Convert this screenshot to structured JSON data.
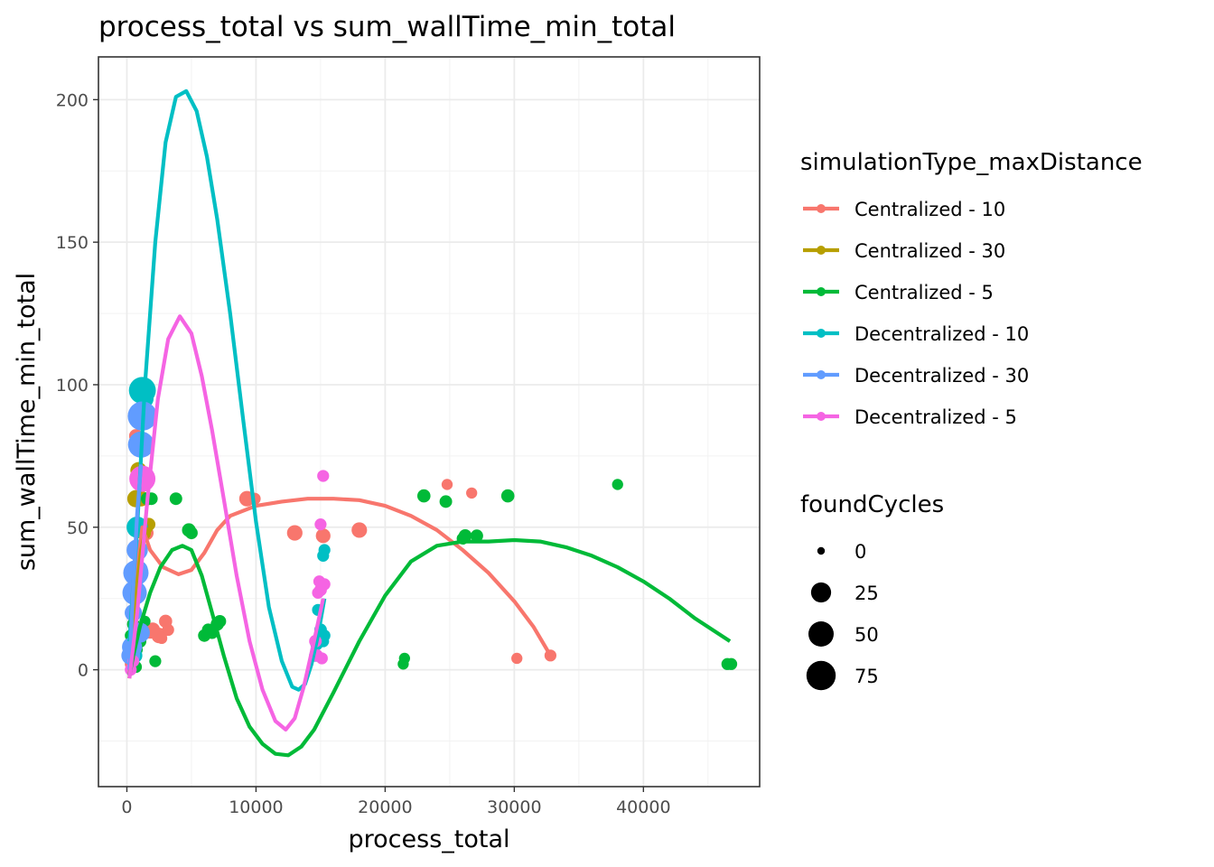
{
  "chart_data": {
    "type": "scatter",
    "title": "process_total  vs  sum_wallTime_min_total",
    "xlabel": "process_total",
    "ylabel": "sum_wallTime_min_total",
    "xlim": [
      -2200,
      49000
    ],
    "ylim": [
      -41,
      215
    ],
    "x_ticks": [
      0,
      10000,
      20000,
      30000,
      40000
    ],
    "x_tick_labels": [
      "0",
      "10000",
      "20000",
      "30000",
      "40000"
    ],
    "y_ticks": [
      0,
      50,
      100,
      150,
      200
    ],
    "y_tick_labels": [
      "0",
      "50",
      "100",
      "150",
      "200"
    ],
    "grid": true,
    "legend": {
      "position": "right",
      "color_title": "simulationType_maxDistance",
      "size_title": "foundCycles",
      "size_values": [
        0,
        25,
        50,
        75
      ],
      "size_labels": [
        "0",
        "25",
        "50",
        "75"
      ]
    },
    "series": [
      {
        "name": "Centralized - 10",
        "color": "#F8766D",
        "points": [
          [
            300,
            2,
            3
          ],
          [
            500,
            5,
            5
          ],
          [
            700,
            82,
            6
          ],
          [
            900,
            60,
            10
          ],
          [
            1000,
            60,
            4
          ],
          [
            1200,
            60,
            5
          ],
          [
            1500,
            48,
            8
          ],
          [
            1800,
            13,
            3
          ],
          [
            2000,
            14,
            8
          ],
          [
            2500,
            12,
            10
          ],
          [
            3000,
            17,
            5
          ],
          [
            3200,
            14,
            3
          ],
          [
            2700,
            11,
            2
          ],
          [
            9300,
            60,
            10
          ],
          [
            9900,
            60,
            3
          ],
          [
            13000,
            48,
            10
          ],
          [
            15200,
            47,
            8
          ],
          [
            18000,
            49,
            10
          ],
          [
            24800,
            65,
            2
          ],
          [
            26700,
            62,
            2
          ],
          [
            30200,
            4,
            2
          ],
          [
            32800,
            5,
            3
          ]
        ],
        "smooth": [
          [
            200,
            0
          ],
          [
            800,
            35
          ],
          [
            1200,
            50
          ],
          [
            1800,
            42
          ],
          [
            2800,
            36
          ],
          [
            4000,
            33.5
          ],
          [
            5000,
            35
          ],
          [
            6000,
            41
          ],
          [
            7000,
            49
          ],
          [
            8000,
            54
          ],
          [
            10000,
            57.5
          ],
          [
            12000,
            59
          ],
          [
            14000,
            60
          ],
          [
            16000,
            60
          ],
          [
            18000,
            59.5
          ],
          [
            20000,
            57.5
          ],
          [
            22000,
            54
          ],
          [
            24000,
            49
          ],
          [
            26000,
            42
          ],
          [
            28000,
            34
          ],
          [
            30000,
            24
          ],
          [
            31500,
            15
          ],
          [
            32800,
            5
          ]
        ]
      },
      {
        "name": "Centralized - 30",
        "color": "#B79F00",
        "points": [
          [
            700,
            60,
            15
          ],
          [
            900,
            70,
            12
          ],
          [
            1100,
            60,
            10
          ],
          [
            1300,
            48,
            8
          ],
          [
            1500,
            50,
            6
          ],
          [
            1700,
            51,
            5
          ],
          [
            600,
            35,
            4
          ],
          [
            400,
            20,
            4
          ]
        ],
        "smooth": [
          [
            200,
            -3
          ],
          [
            500,
            15
          ],
          [
            800,
            30
          ],
          [
            1100,
            42
          ],
          [
            1500,
            50
          ]
        ]
      },
      {
        "name": "Centralized - 5",
        "color": "#00BA38",
        "points": [
          [
            300,
            12,
            3
          ],
          [
            500,
            16,
            4
          ],
          [
            700,
            1,
            3
          ],
          [
            800,
            7,
            2
          ],
          [
            1000,
            10,
            5
          ],
          [
            1200,
            13,
            3
          ],
          [
            1400,
            17,
            2
          ],
          [
            1600,
            60,
            5
          ],
          [
            1900,
            60,
            4
          ],
          [
            2200,
            3,
            3
          ],
          [
            3800,
            60,
            4
          ],
          [
            4800,
            49,
            6
          ],
          [
            5000,
            48,
            4
          ],
          [
            6000,
            12,
            4
          ],
          [
            6300,
            14,
            4
          ],
          [
            6600,
            13,
            4
          ],
          [
            7000,
            16,
            5
          ],
          [
            7200,
            17,
            4
          ],
          [
            21400,
            2,
            2
          ],
          [
            21500,
            4,
            2
          ],
          [
            23000,
            61,
            5
          ],
          [
            24700,
            59,
            4
          ],
          [
            26200,
            47,
            5
          ],
          [
            26000,
            46,
            3
          ],
          [
            27100,
            47,
            4
          ],
          [
            29500,
            61,
            5
          ],
          [
            38000,
            65,
            2
          ],
          [
            46500,
            2,
            3
          ],
          [
            46800,
            2,
            3
          ]
        ],
        "smooth": [
          [
            200,
            -2
          ],
          [
            500,
            5
          ],
          [
            1000,
            15
          ],
          [
            1800,
            27
          ],
          [
            2600,
            36
          ],
          [
            3500,
            42
          ],
          [
            4300,
            43.5
          ],
          [
            5000,
            42
          ],
          [
            5800,
            33
          ],
          [
            6600,
            20
          ],
          [
            7500,
            5
          ],
          [
            8500,
            -10
          ],
          [
            9500,
            -20
          ],
          [
            10500,
            -26
          ],
          [
            11500,
            -29.5
          ],
          [
            12500,
            -30
          ],
          [
            13500,
            -27
          ],
          [
            14500,
            -21
          ],
          [
            16000,
            -8
          ],
          [
            18000,
            10
          ],
          [
            20000,
            26
          ],
          [
            22000,
            38
          ],
          [
            24000,
            43.5
          ],
          [
            26000,
            45
          ],
          [
            28000,
            45
          ],
          [
            30000,
            45.5
          ],
          [
            32000,
            45
          ],
          [
            34000,
            43
          ],
          [
            36000,
            40
          ],
          [
            38000,
            36
          ],
          [
            40000,
            31
          ],
          [
            42000,
            25
          ],
          [
            44000,
            18
          ],
          [
            46700,
            10
          ]
        ]
      },
      {
        "name": "Decentralized - 10",
        "color": "#00BFC4",
        "points": [
          [
            600,
            5,
            10
          ],
          [
            800,
            50,
            30
          ],
          [
            1200,
            98,
            60
          ],
          [
            1400,
            95,
            15
          ],
          [
            14600,
            5,
            4
          ],
          [
            14700,
            9,
            4
          ],
          [
            14800,
            21,
            3
          ],
          [
            15000,
            14,
            4
          ],
          [
            15200,
            40,
            3
          ],
          [
            15300,
            42,
            3
          ],
          [
            15200,
            10,
            3
          ],
          [
            15300,
            12,
            3
          ]
        ],
        "smooth": [
          [
            200,
            10
          ],
          [
            800,
            50
          ],
          [
            1400,
            100
          ],
          [
            2200,
            150
          ],
          [
            3000,
            185
          ],
          [
            3800,
            201
          ],
          [
            4600,
            203
          ],
          [
            5400,
            196
          ],
          [
            6200,
            180
          ],
          [
            7000,
            158
          ],
          [
            8000,
            125
          ],
          [
            9000,
            88
          ],
          [
            10000,
            52
          ],
          [
            11000,
            22
          ],
          [
            12000,
            3
          ],
          [
            12800,
            -6
          ],
          [
            13300,
            -7
          ],
          [
            13800,
            -5
          ],
          [
            14300,
            2
          ],
          [
            14800,
            12
          ],
          [
            15300,
            25
          ]
        ]
      },
      {
        "name": "Decentralized - 30",
        "color": "#619CFF",
        "points": [
          [
            300,
            5,
            20
          ],
          [
            400,
            8,
            25
          ],
          [
            500,
            20,
            15
          ],
          [
            600,
            27,
            45
          ],
          [
            700,
            34,
            50
          ],
          [
            800,
            42,
            30
          ],
          [
            900,
            35,
            20
          ],
          [
            1000,
            13,
            25
          ],
          [
            1200,
            89,
            75
          ],
          [
            1100,
            79,
            55
          ]
        ],
        "smooth": [
          [
            200,
            0
          ],
          [
            500,
            30
          ],
          [
            800,
            55
          ],
          [
            1100,
            72
          ]
        ]
      },
      {
        "name": "Decentralized - 5",
        "color": "#F564E3",
        "points": [
          [
            300,
            0,
            3
          ],
          [
            500,
            3,
            3
          ],
          [
            700,
            67,
            4
          ],
          [
            1200,
            67,
            55
          ],
          [
            14600,
            10,
            4
          ],
          [
            14700,
            5,
            4
          ],
          [
            14800,
            27,
            3
          ],
          [
            15000,
            28,
            4
          ],
          [
            14900,
            31,
            3
          ],
          [
            15200,
            68,
            3
          ],
          [
            15000,
            51,
            3
          ],
          [
            15300,
            30,
            3
          ],
          [
            15100,
            4,
            3
          ]
        ],
        "smooth": [
          [
            200,
            -3
          ],
          [
            800,
            20
          ],
          [
            1600,
            60
          ],
          [
            2400,
            95
          ],
          [
            3200,
            116
          ],
          [
            4100,
            124
          ],
          [
            5000,
            118
          ],
          [
            5800,
            103
          ],
          [
            6600,
            84
          ],
          [
            7500,
            60
          ],
          [
            8500,
            33
          ],
          [
            9500,
            10
          ],
          [
            10500,
            -7
          ],
          [
            11500,
            -18
          ],
          [
            12300,
            -21
          ],
          [
            13000,
            -17
          ],
          [
            13700,
            -6
          ],
          [
            14400,
            8
          ],
          [
            15200,
            25
          ]
        ]
      }
    ]
  }
}
